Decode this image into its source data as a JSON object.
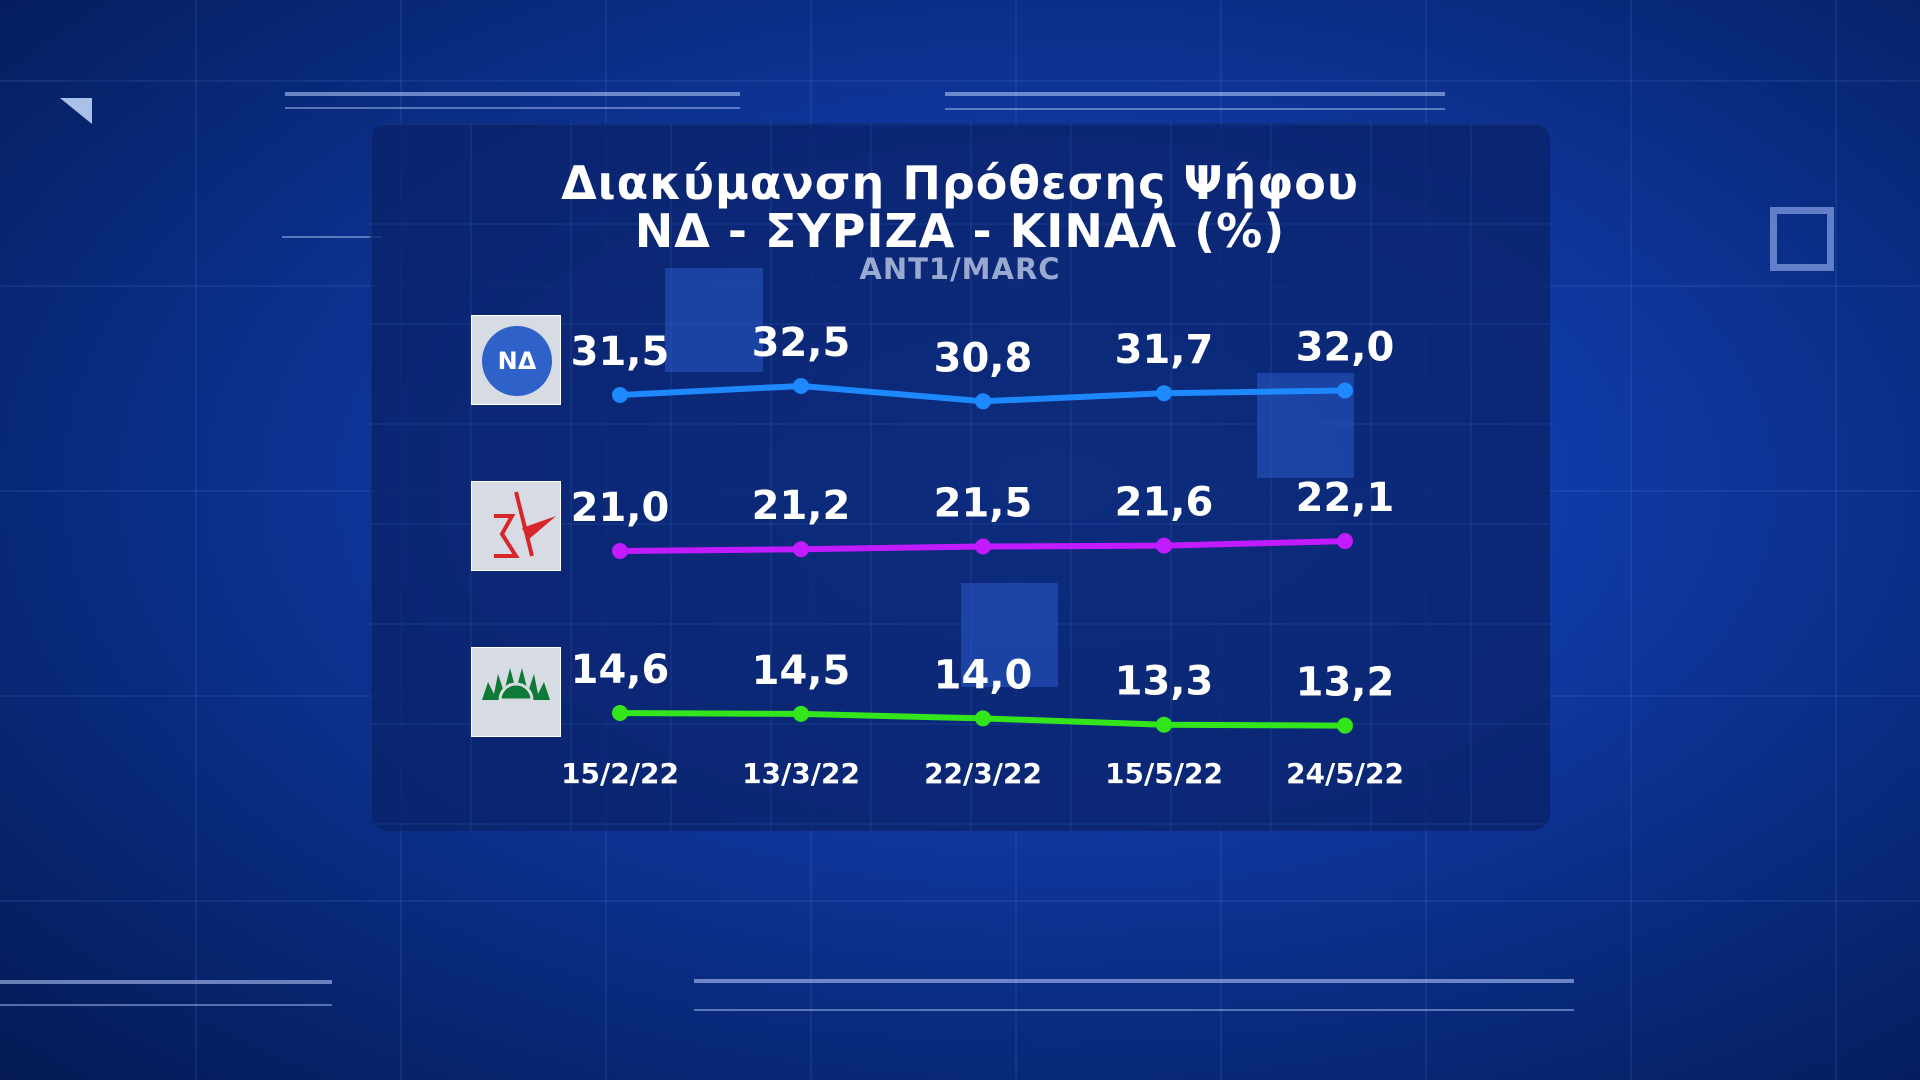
{
  "title_line1": "Διακύμανση Πρόθεσης Ψήφου",
  "title_line2": "ΝΔ - ΣΥΡΙΖΑ - ΚΙΝΑΛ (%)",
  "source": "ANT1/MARC",
  "colors": {
    "nd": "#1e88ff",
    "syriza": "#c21bff",
    "kinal": "#33e61c",
    "background": "#0f3aa6"
  },
  "logos": [
    {
      "party": "nd",
      "icon": "nd-logo-icon",
      "text": "ΝΔ"
    },
    {
      "party": "syriza",
      "icon": "syriza-star-logo-icon"
    },
    {
      "party": "kinal",
      "icon": "kinal-sun-logo-icon"
    }
  ],
  "chart_data": {
    "type": "line",
    "x": [
      "15/2/22",
      "13/3/22",
      "22/3/22",
      "15/5/22",
      "24/5/22"
    ],
    "series": [
      {
        "key": "nd",
        "values": [
          31.5,
          32.5,
          30.8,
          31.7,
          32.0
        ],
        "labels": [
          "31,5",
          "32,5",
          "30,8",
          "31,7",
          "32,0"
        ]
      },
      {
        "key": "syriza",
        "values": [
          21.0,
          21.2,
          21.5,
          21.6,
          22.1
        ],
        "labels": [
          "21,0",
          "21,2",
          "21,5",
          "21,6",
          "22,1"
        ]
      },
      {
        "key": "kinal",
        "values": [
          14.6,
          14.5,
          14.0,
          13.3,
          13.2
        ],
        "labels": [
          "14,6",
          "14,5",
          "14,0",
          "13,3",
          "13,2"
        ]
      }
    ],
    "grid": false,
    "legend": "party logos at left of each line"
  }
}
